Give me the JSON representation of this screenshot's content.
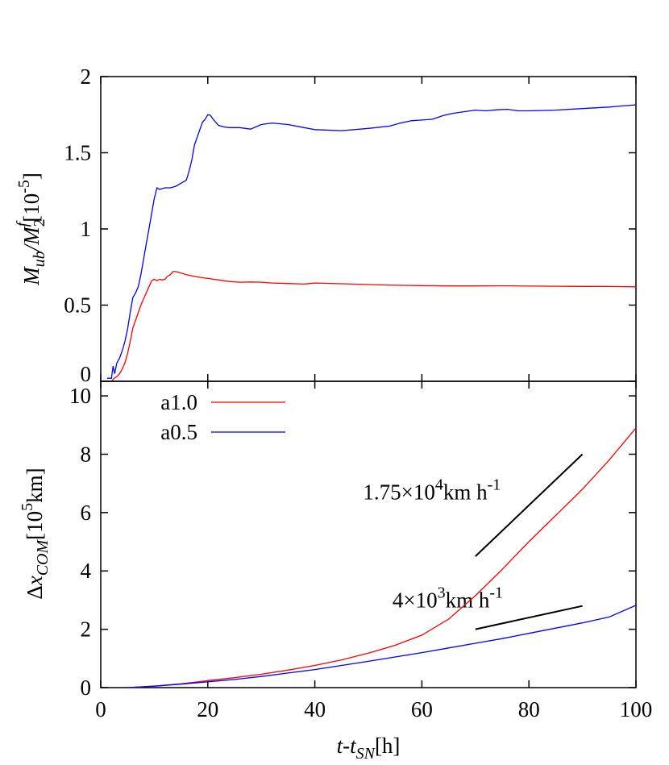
{
  "chart_data": [
    {
      "type": "line",
      "panel": "top",
      "ylabel_parts": {
        "m": "M",
        "ub": "ub",
        "slash": "/",
        "m2": "M",
        "sub2": "2",
        "supf": "f",
        "unit_open": "[10",
        "unit_exp": "-5",
        "unit_close": "]"
      },
      "xlim": [
        0,
        100
      ],
      "ylim": [
        0,
        2
      ],
      "xticks": [
        0,
        20,
        40,
        60,
        80,
        100
      ],
      "yticks": [
        "0",
        "0.5",
        "1",
        "1.5",
        "2"
      ],
      "grid": false,
      "series": [
        {
          "name": "a1.0",
          "color": "#ff0000",
          "x": [
            1.2,
            2.0,
            2.5,
            3.0,
            3.5,
            4.0,
            4.5,
            5.0,
            5.5,
            6.0,
            6.5,
            7.0,
            7.5,
            8.0,
            8.5,
            9.0,
            9.5,
            10.0,
            10.5,
            11.0,
            11.5,
            12.0,
            12.5,
            13.0,
            13.5,
            14.0,
            15.0,
            16.0,
            18.0,
            20.0,
            22.0,
            24.0,
            26.0,
            28.0,
            30.0,
            32.0,
            35.0,
            38.0,
            40.0,
            45.0,
            50.0,
            55.0,
            60.0,
            65.0,
            70.0,
            75.0,
            80.0,
            85.0,
            90.0,
            95.0,
            100.0
          ],
          "y": [
            0.0,
            0.0,
            0.02,
            0.03,
            0.05,
            0.08,
            0.12,
            0.18,
            0.26,
            0.35,
            0.4,
            0.45,
            0.5,
            0.54,
            0.58,
            0.62,
            0.66,
            0.67,
            0.66,
            0.67,
            0.665,
            0.67,
            0.69,
            0.7,
            0.72,
            0.72,
            0.71,
            0.7,
            0.685,
            0.675,
            0.665,
            0.655,
            0.65,
            0.652,
            0.65,
            0.645,
            0.642,
            0.638,
            0.645,
            0.64,
            0.635,
            0.63,
            0.628,
            0.626,
            0.626,
            0.627,
            0.625,
            0.624,
            0.623,
            0.622,
            0.62
          ]
        },
        {
          "name": "a0.5",
          "color": "#0000ff",
          "x": [
            1.2,
            2.0,
            2.3,
            2.6,
            3.0,
            3.5,
            4.0,
            4.5,
            5.0,
            5.5,
            6.0,
            6.5,
            7.0,
            7.5,
            8.0,
            8.5,
            9.0,
            9.5,
            10.0,
            10.5,
            11.0,
            12.0,
            13.0,
            14.0,
            15.0,
            16.0,
            16.5,
            17.0,
            17.5,
            18.0,
            18.5,
            19.0,
            19.5,
            20.0,
            20.5,
            21.0,
            22.0,
            23.0,
            24.0,
            25.0,
            26.0,
            27.0,
            28.0,
            30.0,
            32.0,
            35.0,
            38.0,
            40.0,
            45.0,
            50.0,
            54.0,
            56.0,
            58.0,
            60.0,
            62.0,
            64.0,
            66.0,
            68.0,
            70.0,
            72.0,
            74.0,
            76.0,
            78.0,
            80.0,
            85.0,
            90.0,
            95.0,
            100.0
          ],
          "y": [
            0.02,
            0.02,
            0.1,
            0.05,
            0.12,
            0.15,
            0.2,
            0.26,
            0.34,
            0.45,
            0.55,
            0.58,
            0.62,
            0.7,
            0.8,
            0.9,
            1.0,
            1.1,
            1.2,
            1.27,
            1.26,
            1.27,
            1.27,
            1.28,
            1.3,
            1.32,
            1.38,
            1.45,
            1.55,
            1.6,
            1.65,
            1.7,
            1.72,
            1.75,
            1.745,
            1.72,
            1.68,
            1.67,
            1.665,
            1.665,
            1.665,
            1.66,
            1.655,
            1.685,
            1.695,
            1.685,
            1.665,
            1.652,
            1.645,
            1.66,
            1.675,
            1.695,
            1.71,
            1.715,
            1.72,
            1.745,
            1.76,
            1.77,
            1.78,
            1.775,
            1.782,
            1.785,
            1.775,
            1.775,
            1.78,
            1.79,
            1.8,
            1.815
          ]
        }
      ]
    },
    {
      "type": "line",
      "panel": "bottom",
      "xlabel_parts": {
        "t": "t",
        "dash": "-",
        "t2": "t",
        "sub": "SN",
        "unit": "[h]"
      },
      "ylabel_parts": {
        "delta": "Δ",
        "x": "x",
        "sub": "COM",
        "unit_open": "[10",
        "unit_exp": "5",
        "unit_close": "km]"
      },
      "xlim": [
        0,
        100
      ],
      "ylim": [
        0,
        10.5
      ],
      "xticks": [
        "0",
        "20",
        "40",
        "60",
        "80",
        "100"
      ],
      "yticks": [
        "0",
        "2",
        "4",
        "6",
        "8",
        "10"
      ],
      "grid": false,
      "legend": "top-left",
      "series": [
        {
          "name": "a1.0",
          "color": "#ff0000",
          "x": [
            5,
            10,
            15,
            20,
            25,
            30,
            35,
            40,
            45,
            50,
            55,
            60,
            65,
            70,
            75,
            80,
            85,
            90,
            95,
            100
          ],
          "y": [
            0.0,
            0.05,
            0.13,
            0.24,
            0.34,
            0.46,
            0.6,
            0.76,
            0.95,
            1.18,
            1.45,
            1.8,
            2.35,
            3.15,
            4.05,
            5.0,
            5.9,
            6.8,
            7.8,
            8.9
          ]
        },
        {
          "name": "a0.5",
          "color": "#0000ff",
          "x": [
            5,
            10,
            15,
            20,
            25,
            30,
            35,
            40,
            45,
            50,
            55,
            60,
            65,
            70,
            75,
            80,
            85,
            90,
            95,
            100
          ],
          "y": [
            0.0,
            0.05,
            0.12,
            0.2,
            0.28,
            0.38,
            0.5,
            0.62,
            0.76,
            0.9,
            1.05,
            1.2,
            1.36,
            1.52,
            1.68,
            1.86,
            2.04,
            2.22,
            2.42,
            2.82
          ]
        }
      ],
      "annotations": [
        {
          "id": "fast",
          "text_parts": {
            "base": "1.75×10",
            "exp": "4",
            "rest": "km h",
            "exp2": "-1"
          },
          "line": {
            "x": [
              70,
              90
            ],
            "y": [
              4.5,
              8.0
            ]
          },
          "label_at": {
            "x": 49,
            "y": 6.45
          }
        },
        {
          "id": "slow",
          "text_parts": {
            "base": "4×10",
            "exp": "3",
            "rest": "km h",
            "exp2": "-1"
          },
          "line": {
            "x": [
              70,
              90
            ],
            "y": [
              2.0,
              2.8
            ]
          },
          "label_at": {
            "x": 54.5,
            "y": 2.75
          }
        }
      ]
    }
  ]
}
